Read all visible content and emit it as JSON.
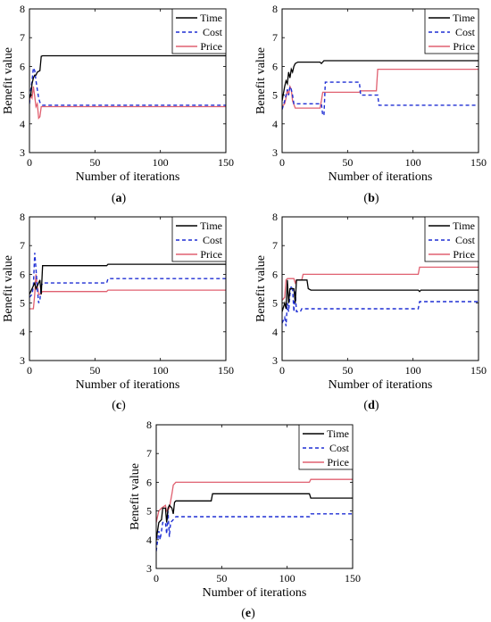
{
  "chart_data": [
    {
      "type": "line",
      "panel_label": "a",
      "caption": "(a)",
      "xlabel": "Number of iterations",
      "ylabel": "Benefit value",
      "xlim": [
        0,
        150
      ],
      "ylim": [
        3,
        8
      ],
      "xticks": [
        "0",
        "50",
        "100",
        "150"
      ],
      "yticks": [
        "3",
        "4",
        "5",
        "6",
        "7",
        "8"
      ],
      "grid": false,
      "legend_position": "top-right",
      "series": [
        {
          "name": "Time",
          "color": "#000000",
          "dash": "solid",
          "points": [
            [
              0,
              4.9
            ],
            [
              1,
              5.0
            ],
            [
              2,
              5.4
            ],
            [
              3,
              5.6
            ],
            [
              4,
              5.7
            ],
            [
              5,
              5.7
            ],
            [
              6,
              5.8
            ],
            [
              8,
              5.85
            ],
            [
              9,
              6.35
            ],
            [
              10,
              6.37
            ],
            [
              150,
              6.37
            ]
          ]
        },
        {
          "name": "Cost",
          "color": "#1f2fd4",
          "dash": "dashed",
          "points": [
            [
              0,
              4.7
            ],
            [
              1,
              5.2
            ],
            [
              2,
              5.5
            ],
            [
              3,
              5.95
            ],
            [
              4,
              5.85
            ],
            [
              5,
              5.5
            ],
            [
              6,
              5.2
            ],
            [
              7,
              4.9
            ],
            [
              8,
              4.75
            ],
            [
              10,
              4.65
            ],
            [
              150,
              4.65
            ]
          ]
        },
        {
          "name": "Price",
          "color": "#e06070",
          "dash": "solid",
          "points": [
            [
              0,
              4.8
            ],
            [
              1,
              5.0
            ],
            [
              2,
              4.9
            ],
            [
              3,
              5.3
            ],
            [
              4,
              4.95
            ],
            [
              5,
              4.6
            ],
            [
              6,
              4.7
            ],
            [
              7,
              4.2
            ],
            [
              8,
              4.25
            ],
            [
              9,
              4.6
            ],
            [
              10,
              4.6
            ],
            [
              150,
              4.6
            ]
          ]
        }
      ]
    },
    {
      "type": "line",
      "panel_label": "b",
      "caption": "(b)",
      "xlabel": "Number of iterations",
      "ylabel": "Benefit value",
      "xlim": [
        0,
        150
      ],
      "ylim": [
        3,
        8
      ],
      "xticks": [
        "0",
        "50",
        "100",
        "150"
      ],
      "yticks": [
        "3",
        "4",
        "5",
        "6",
        "7",
        "8"
      ],
      "grid": false,
      "legend_position": "top-right",
      "series": [
        {
          "name": "Time",
          "color": "#000000",
          "dash": "solid",
          "points": [
            [
              0,
              4.8
            ],
            [
              2,
              5.3
            ],
            [
              3,
              5.5
            ],
            [
              4,
              5.4
            ],
            [
              5,
              5.8
            ],
            [
              6,
              5.6
            ],
            [
              7,
              5.9
            ],
            [
              8,
              5.8
            ],
            [
              9,
              6.0
            ],
            [
              10,
              6.1
            ],
            [
              12,
              6.15
            ],
            [
              29,
              6.15
            ],
            [
              30,
              6.1
            ],
            [
              32,
              6.2
            ],
            [
              150,
              6.2
            ]
          ]
        },
        {
          "name": "Cost",
          "color": "#1f2fd4",
          "dash": "dashed",
          "points": [
            [
              0,
              4.5
            ],
            [
              2,
              4.8
            ],
            [
              3,
              5.0
            ],
            [
              4,
              5.2
            ],
            [
              5,
              5.0
            ],
            [
              6,
              5.3
            ],
            [
              7,
              5.2
            ],
            [
              8,
              5.0
            ],
            [
              9,
              4.7
            ],
            [
              30,
              4.7
            ],
            [
              31,
              4.3
            ],
            [
              32,
              4.3
            ],
            [
              33,
              5.45
            ],
            [
              59,
              5.45
            ],
            [
              60,
              5.0
            ],
            [
              73,
              5.0
            ],
            [
              74,
              4.65
            ],
            [
              150,
              4.65
            ]
          ]
        },
        {
          "name": "Price",
          "color": "#e06070",
          "dash": "solid",
          "points": [
            [
              0,
              4.6
            ],
            [
              2,
              4.7
            ],
            [
              3,
              4.9
            ],
            [
              4,
              5.2
            ],
            [
              5,
              5.0
            ],
            [
              6,
              5.3
            ],
            [
              7,
              5.2
            ],
            [
              8,
              4.8
            ],
            [
              10,
              4.55
            ],
            [
              29,
              4.55
            ],
            [
              30,
              4.8
            ],
            [
              31,
              5.1
            ],
            [
              59,
              5.1
            ],
            [
              60,
              5.15
            ],
            [
              72,
              5.15
            ],
            [
              73,
              5.9
            ],
            [
              150,
              5.9
            ]
          ]
        }
      ]
    },
    {
      "type": "line",
      "panel_label": "c",
      "caption": "(c)",
      "xlabel": "Number of iterations",
      "ylabel": "Benefit value",
      "xlim": [
        0,
        150
      ],
      "ylim": [
        3,
        8
      ],
      "xticks": [
        "0",
        "50",
        "100",
        "150"
      ],
      "yticks": [
        "3",
        "4",
        "5",
        "6",
        "7",
        "8"
      ],
      "grid": false,
      "legend_position": "top-right",
      "series": [
        {
          "name": "Time",
          "color": "#000000",
          "dash": "solid",
          "points": [
            [
              0,
              5.3
            ],
            [
              2,
              5.5
            ],
            [
              3,
              5.6
            ],
            [
              4,
              5.7
            ],
            [
              5,
              5.5
            ],
            [
              6,
              5.6
            ],
            [
              7,
              5.7
            ],
            [
              8,
              5.8
            ],
            [
              9,
              5.3
            ],
            [
              10,
              6.3
            ],
            [
              59,
              6.3
            ],
            [
              60,
              6.35
            ],
            [
              150,
              6.35
            ]
          ]
        },
        {
          "name": "Cost",
          "color": "#1f2fd4",
          "dash": "dashed",
          "points": [
            [
              0,
              5.2
            ],
            [
              2,
              5.3
            ],
            [
              3,
              5.6
            ],
            [
              4,
              6.75
            ],
            [
              5,
              6.2
            ],
            [
              6,
              5.5
            ],
            [
              7,
              5.0
            ],
            [
              8,
              5.1
            ],
            [
              9,
              5.6
            ],
            [
              10,
              5.7
            ],
            [
              59,
              5.7
            ],
            [
              60,
              5.85
            ],
            [
              150,
              5.85
            ]
          ]
        },
        {
          "name": "Price",
          "color": "#e06070",
          "dash": "solid",
          "points": [
            [
              0,
              4.8
            ],
            [
              3,
              4.8
            ],
            [
              4,
              5.3
            ],
            [
              5,
              6.0
            ],
            [
              6,
              5.6
            ],
            [
              7,
              5.3
            ],
            [
              8,
              5.3
            ],
            [
              10,
              5.4
            ],
            [
              59,
              5.4
            ],
            [
              60,
              5.45
            ],
            [
              150,
              5.45
            ]
          ]
        }
      ]
    },
    {
      "type": "line",
      "panel_label": "d",
      "caption": "(d)",
      "xlabel": "Number of iterations",
      "ylabel": "Benefit value",
      "xlim": [
        0,
        150
      ],
      "ylim": [
        3,
        8
      ],
      "xticks": [
        "0",
        "50",
        "100",
        "150"
      ],
      "yticks": [
        "3",
        "4",
        "5",
        "6",
        "7",
        "8"
      ],
      "grid": false,
      "legend_position": "top-right",
      "series": [
        {
          "name": "Time",
          "color": "#000000",
          "dash": "solid",
          "points": [
            [
              0,
              4.7
            ],
            [
              2,
              5.0
            ],
            [
              3,
              4.8
            ],
            [
              4,
              5.8
            ],
            [
              5,
              5.0
            ],
            [
              6,
              5.5
            ],
            [
              9,
              5.5
            ],
            [
              10,
              5.0
            ],
            [
              11,
              5.8
            ],
            [
              19,
              5.8
            ],
            [
              20,
              5.5
            ],
            [
              22,
              5.45
            ],
            [
              104,
              5.45
            ],
            [
              105,
              5.4
            ],
            [
              106,
              5.45
            ],
            [
              150,
              5.45
            ]
          ]
        },
        {
          "name": "Cost",
          "color": "#1f2fd4",
          "dash": "dashed",
          "points": [
            [
              0,
              4.3
            ],
            [
              2,
              4.5
            ],
            [
              3,
              4.2
            ],
            [
              4,
              5.0
            ],
            [
              5,
              4.7
            ],
            [
              6,
              5.3
            ],
            [
              7,
              5.6
            ],
            [
              8,
              5.5
            ],
            [
              9,
              4.7
            ],
            [
              10,
              5.4
            ],
            [
              11,
              4.7
            ],
            [
              14,
              4.7
            ],
            [
              15,
              4.8
            ],
            [
              104,
              4.8
            ],
            [
              105,
              5.05
            ],
            [
              150,
              5.05
            ]
          ]
        },
        {
          "name": "Price",
          "color": "#e06070",
          "dash": "solid",
          "points": [
            [
              0,
              5.1
            ],
            [
              2,
              5.2
            ],
            [
              3,
              5.8
            ],
            [
              4,
              5.85
            ],
            [
              9,
              5.85
            ],
            [
              10,
              5.7
            ],
            [
              11,
              5.8
            ],
            [
              15,
              5.8
            ],
            [
              16,
              6.0
            ],
            [
              104,
              6.0
            ],
            [
              105,
              6.25
            ],
            [
              150,
              6.25
            ]
          ]
        }
      ]
    },
    {
      "type": "line",
      "panel_label": "e",
      "caption": "(e)",
      "xlabel": "Number of iterations",
      "ylabel": "Benefit value",
      "xlim": [
        0,
        150
      ],
      "ylim": [
        3,
        8
      ],
      "xticks": [
        "0",
        "50",
        "100",
        "150"
      ],
      "yticks": [
        "3",
        "4",
        "5",
        "6",
        "7",
        "8"
      ],
      "grid": false,
      "legend_position": "top-right",
      "series": [
        {
          "name": "Time",
          "color": "#000000",
          "dash": "solid",
          "points": [
            [
              0,
              4.0
            ],
            [
              2,
              4.6
            ],
            [
              4,
              4.7
            ],
            [
              5,
              5.1
            ],
            [
              7,
              5.1
            ],
            [
              8,
              4.6
            ],
            [
              9,
              5.1
            ],
            [
              10,
              5.2
            ],
            [
              12,
              5.1
            ],
            [
              13,
              4.9
            ],
            [
              14,
              5.3
            ],
            [
              15,
              5.35
            ],
            [
              42,
              5.35
            ],
            [
              43,
              5.6
            ],
            [
              117,
              5.6
            ],
            [
              118,
              5.45
            ],
            [
              150,
              5.45
            ]
          ]
        },
        {
          "name": "Cost",
          "color": "#1f2fd4",
          "dash": "dashed",
          "points": [
            [
              0,
              3.6
            ],
            [
              2,
              4.3
            ],
            [
              3,
              4.0
            ],
            [
              5,
              4.6
            ],
            [
              7,
              4.6
            ],
            [
              8,
              4.2
            ],
            [
              9,
              5.0
            ],
            [
              10,
              4.1
            ],
            [
              11,
              4.6
            ],
            [
              13,
              4.7
            ],
            [
              14,
              4.75
            ],
            [
              15,
              4.8
            ],
            [
              117,
              4.8
            ],
            [
              118,
              4.9
            ],
            [
              150,
              4.9
            ]
          ]
        },
        {
          "name": "Price",
          "color": "#e06070",
          "dash": "solid",
          "points": [
            [
              0,
              4.6
            ],
            [
              2,
              5.0
            ],
            [
              4,
              5.1
            ],
            [
              7,
              5.2
            ],
            [
              8,
              5.0
            ],
            [
              10,
              5.1
            ],
            [
              12,
              5.6
            ],
            [
              13,
              5.9
            ],
            [
              15,
              6.0
            ],
            [
              117,
              6.0
            ],
            [
              118,
              6.1
            ],
            [
              150,
              6.1
            ]
          ]
        }
      ]
    }
  ]
}
